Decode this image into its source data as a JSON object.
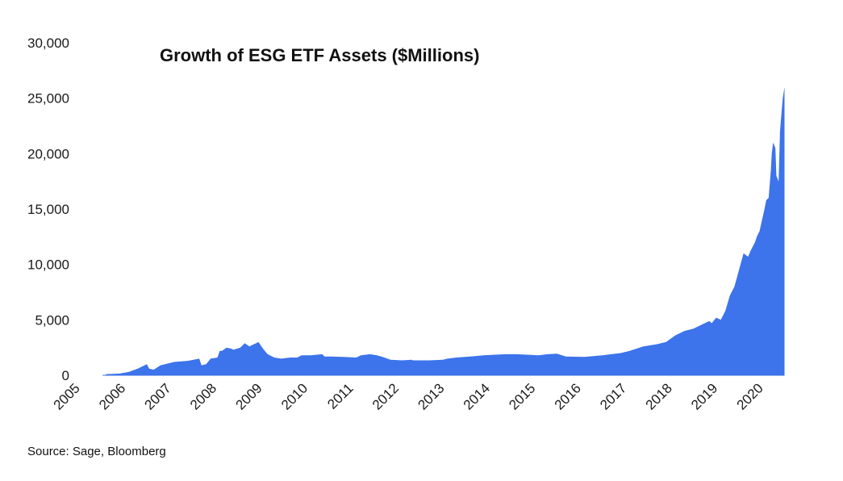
{
  "chart_data": {
    "type": "area",
    "title": "Growth of ESG ETF Assets ($Millions)",
    "xlabel": "",
    "ylabel": "",
    "ylim": [
      0,
      30000
    ],
    "xlim": [
      2005,
      2020.55
    ],
    "y_ticks": [
      0,
      5000,
      10000,
      15000,
      20000,
      25000,
      30000
    ],
    "y_tick_labels": [
      "0",
      "5,000",
      "10,000",
      "15,000",
      "20,000",
      "25,000",
      "30,000"
    ],
    "x_tick_labels": [
      "2005",
      "2006",
      "2007",
      "2008",
      "2009",
      "2010",
      "2011",
      "2012",
      "2013",
      "2014",
      "2015",
      "2016",
      "2017",
      "2018",
      "2019",
      "2020"
    ],
    "grid": false,
    "legend": "none",
    "color": "#3d73eb",
    "series": [
      {
        "x": [
          2005.5,
          2005.8,
          2006.0,
          2006.2,
          2006.4,
          2006.45,
          2006.55,
          2006.7,
          2007.0,
          2007.3,
          2007.55,
          2007.6,
          2007.7,
          2007.8,
          2007.95,
          2008.0,
          2008.05,
          2008.15,
          2008.25,
          2008.3,
          2008.45,
          2008.55,
          2008.65,
          2008.75,
          2008.8,
          2008.85,
          2008.95,
          2009.05,
          2009.2,
          2009.35,
          2009.55,
          2009.7,
          2009.8,
          2010.0,
          2010.25,
          2010.3,
          2010.45,
          2010.7,
          2011.0,
          2011.1,
          2011.3,
          2011.45,
          2011.55,
          2011.75,
          2012.0,
          2012.2,
          2012.25,
          2012.6,
          2012.9,
          2013.0,
          2013.2,
          2013.5,
          2013.8,
          2014.0,
          2014.3,
          2014.5,
          2014.8,
          2015.0,
          2015.2,
          2015.4,
          2015.6,
          2016.0,
          2016.4,
          2016.8,
          2017.0,
          2017.3,
          2017.6,
          2017.8,
          2018.0,
          2018.2,
          2018.4,
          2018.6,
          2018.75,
          2018.8,
          2018.9,
          2019.0,
          2019.1,
          2019.2,
          2019.3,
          2019.4,
          2019.5,
          2019.6,
          2019.65,
          2019.75,
          2019.8,
          2019.85,
          2019.95,
          2020.0,
          2020.05,
          2020.1,
          2020.12,
          2020.15,
          2020.2,
          2020.22,
          2020.27,
          2020.3,
          2020.32,
          2020.36,
          2020.4
        ],
        "values": [
          100,
          150,
          300,
          600,
          1000,
          600,
          500,
          900,
          1200,
          1300,
          1500,
          900,
          1000,
          1500,
          1600,
          2200,
          2200,
          2500,
          2400,
          2300,
          2500,
          2900,
          2600,
          2800,
          2900,
          3000,
          2400,
          1900,
          1600,
          1500,
          1600,
          1600,
          1800,
          1800,
          1900,
          1700,
          1700,
          1650,
          1600,
          1800,
          1900,
          1800,
          1700,
          1400,
          1350,
          1400,
          1350,
          1350,
          1400,
          1500,
          1600,
          1700,
          1800,
          1850,
          1900,
          1900,
          1850,
          1800,
          1900,
          1950,
          1700,
          1650,
          1800,
          2000,
          2200,
          2600,
          2800,
          3000,
          3600,
          4000,
          4200,
          4600,
          4900,
          4700,
          5200,
          5000,
          5800,
          7200,
          8000,
          9500,
          11000,
          10700,
          11200,
          12000,
          12600,
          13000,
          14800,
          15800,
          16000,
          18500,
          20000,
          21000,
          20500,
          18000,
          17500,
          22000,
          23000,
          25000,
          26000
        ]
      }
    ]
  },
  "footer": {
    "source": "Source: Sage, Bloomberg"
  }
}
